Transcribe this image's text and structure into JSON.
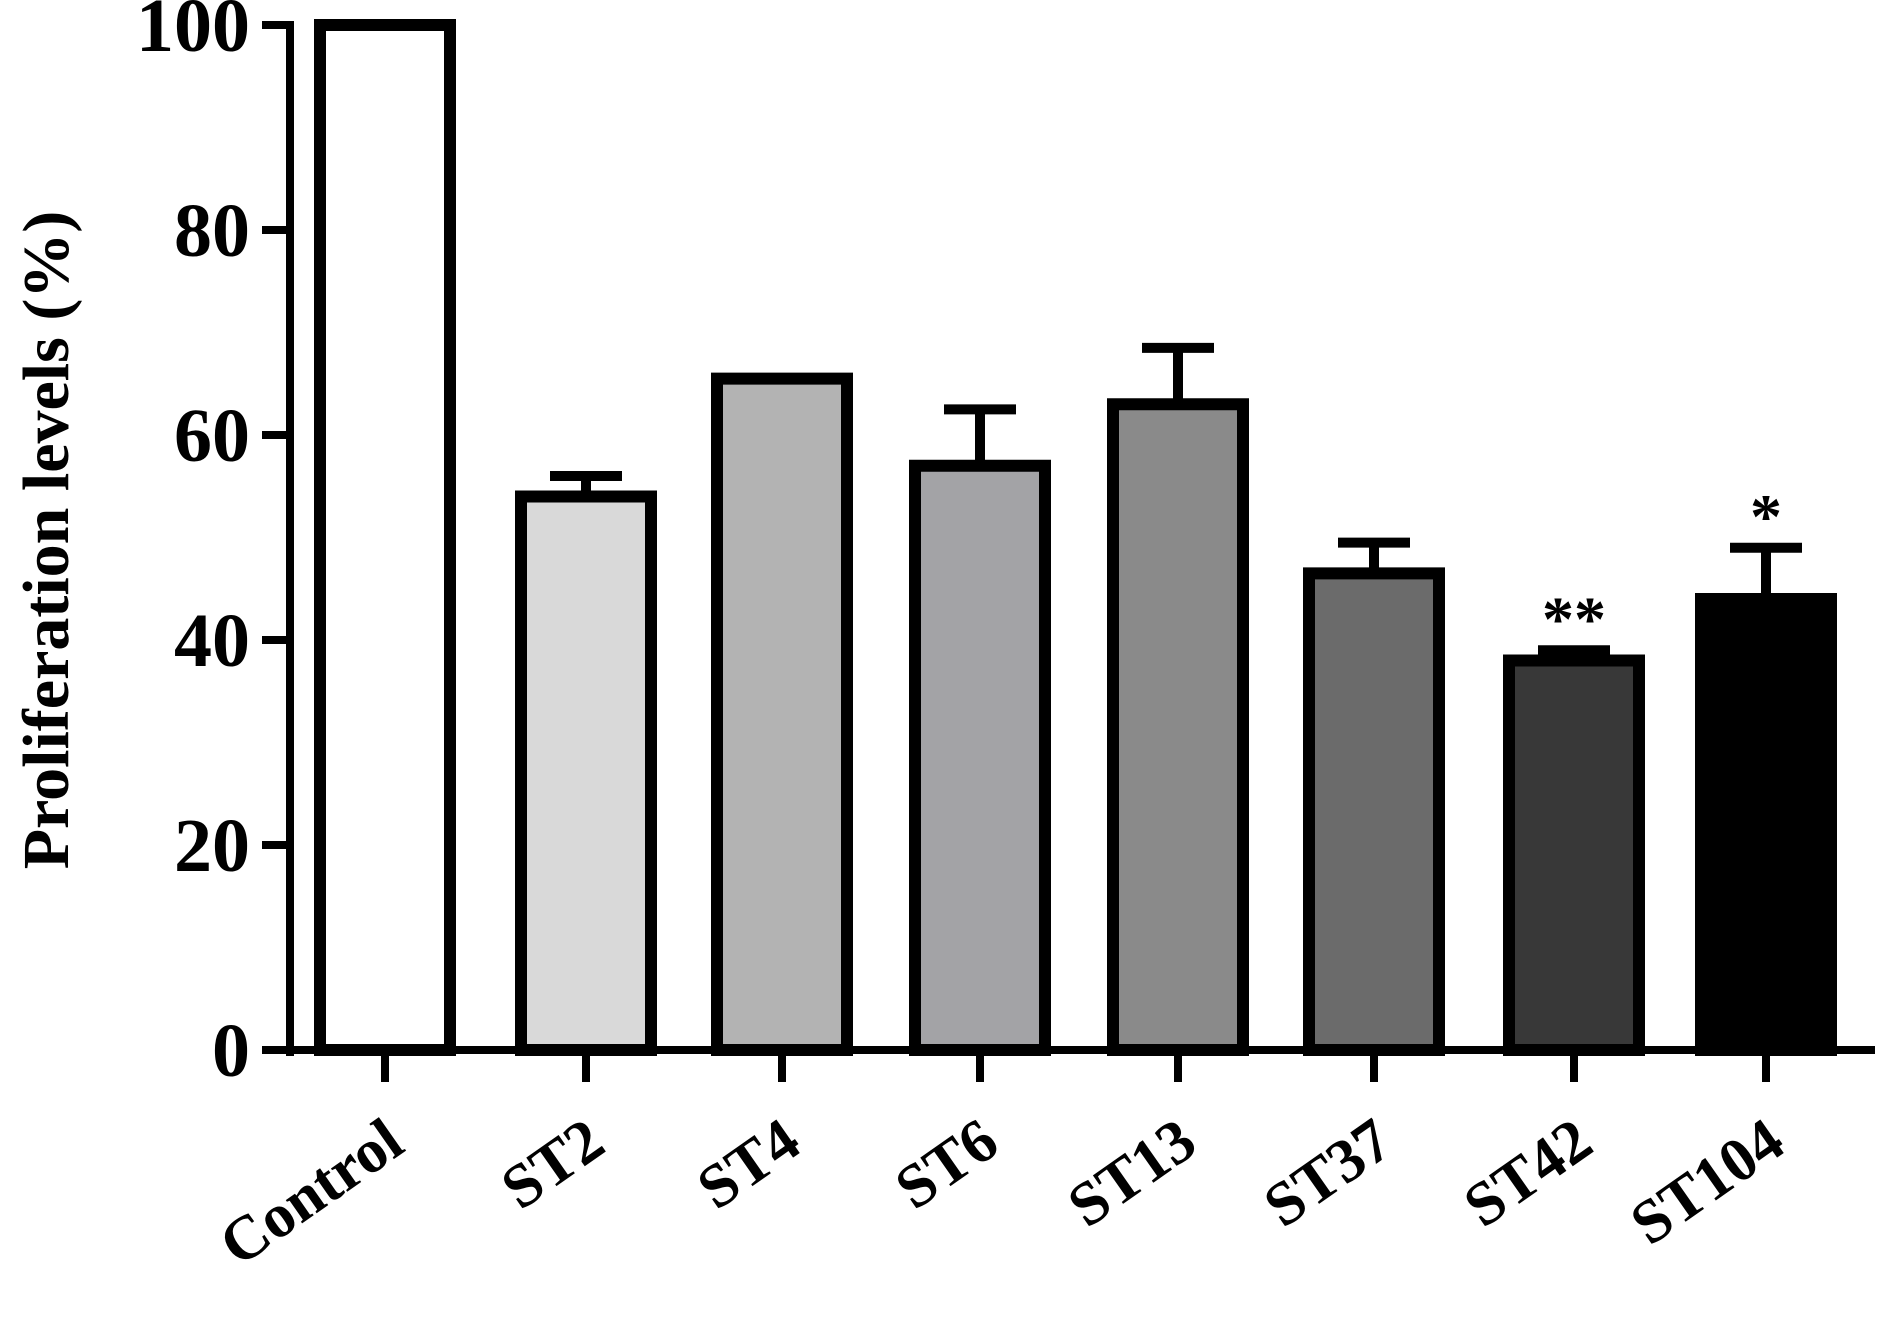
{
  "chart_data": {
    "type": "bar",
    "title": "",
    "xlabel": "",
    "ylabel": "Proliferation levels (%)",
    "ylim": [
      0,
      100
    ],
    "yticks": [
      "0",
      "20",
      "40",
      "60",
      "80",
      "100"
    ],
    "categories": [
      "Control",
      "ST2",
      "ST4",
      "ST6",
      "ST13",
      "ST37",
      "ST42",
      "ST104"
    ],
    "values": [
      100,
      54,
      65.5,
      57,
      63,
      46.5,
      38,
      44
    ],
    "error_upper": [
      0,
      2,
      0,
      5.5,
      5.5,
      3,
      1,
      5
    ],
    "colors": [
      "#ffffff",
      "#d9d9d9",
      "#b3b3b3",
      "#a3a3a6",
      "#8a8a8a",
      "#6b6b6b",
      "#383838",
      "#000000"
    ],
    "annotations": [
      "",
      "",
      "",
      "",
      "",
      "",
      "**",
      "*"
    ],
    "grid": false,
    "legend": "none"
  }
}
